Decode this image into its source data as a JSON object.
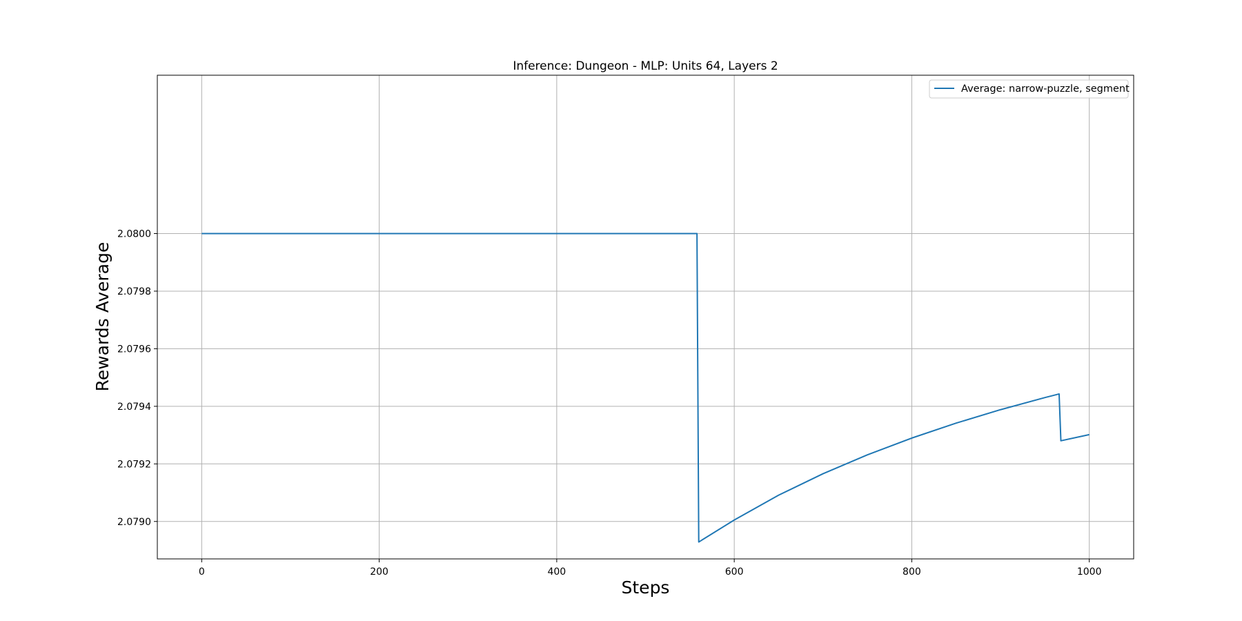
{
  "chart_data": {
    "type": "line",
    "title": "Inference: Dungeon - MLP: Units 64, Layers 2",
    "xlabel": "Steps",
    "ylabel": "Rewards Average",
    "xlim": [
      -50,
      1050
    ],
    "ylim": [
      2.07887,
      2.08055
    ],
    "xticks": [
      0,
      200,
      400,
      600,
      800,
      1000
    ],
    "yticks": [
      2.079,
      2.0792,
      2.0794,
      2.0796,
      2.0798,
      2.08
    ],
    "xtick_labels": [
      "0",
      "200",
      "400",
      "600",
      "800",
      "1000"
    ],
    "ytick_labels": [
      "2.0790",
      "2.0792",
      "2.0794",
      "2.0796",
      "2.0798",
      "2.0800"
    ],
    "grid": true,
    "legend_position": "top-right",
    "color": "#1f77b4",
    "series": [
      {
        "name": "Average: narrow-puzzle, segment",
        "x": [
          0,
          558,
          558,
          560,
          600,
          650,
          700,
          750,
          800,
          850,
          900,
          950,
          966,
          966,
          968,
          1000
        ],
        "y": [
          2.08,
          2.08,
          2.08,
          2.0789286,
          2.0790052,
          2.0790913,
          2.0791658,
          2.0792315,
          2.0792897,
          2.0793416,
          2.0793883,
          2.0794304,
          2.0794429,
          2.0794429,
          2.0792803,
          2.0793016
        ]
      }
    ]
  }
}
